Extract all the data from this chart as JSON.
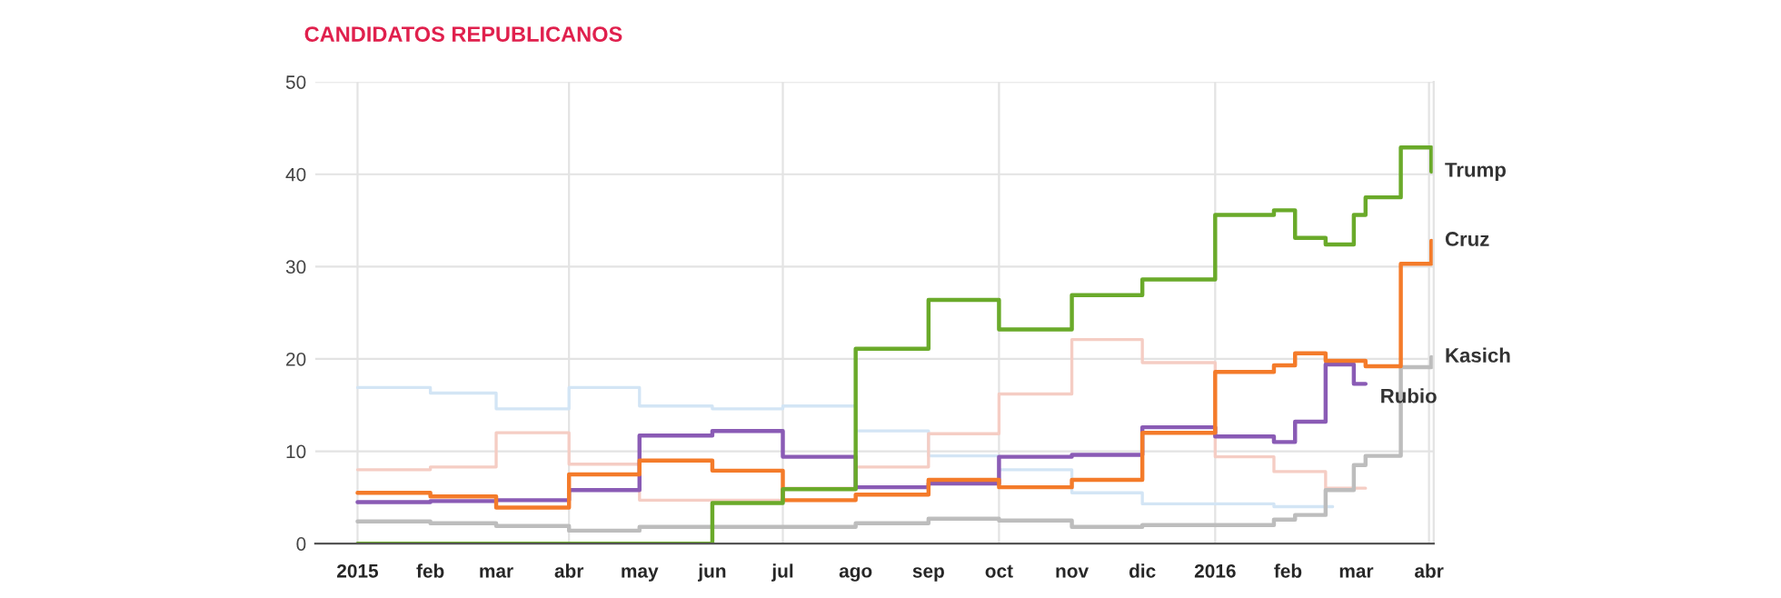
{
  "chart_data": {
    "type": "step",
    "title": "CANDIDATOS REPUBLICANOS",
    "xlim": [
      "2014-12-14",
      "2016-04-03"
    ],
    "ylim": [
      0,
      50
    ],
    "yticks": [
      0,
      10,
      20,
      30,
      40,
      50
    ],
    "xticks": [
      {
        "value": "2015-01-01",
        "label": "2015"
      },
      {
        "value": "2015-02-01",
        "label": "feb"
      },
      {
        "value": "2015-03-01",
        "label": "mar"
      },
      {
        "value": "2015-04-01",
        "label": "abr"
      },
      {
        "value": "2015-05-01",
        "label": "may"
      },
      {
        "value": "2015-06-01",
        "label": "jun"
      },
      {
        "value": "2015-07-01",
        "label": "jul"
      },
      {
        "value": "2015-08-01",
        "label": "ago"
      },
      {
        "value": "2015-09-01",
        "label": "sep"
      },
      {
        "value": "2015-10-01",
        "label": "oct"
      },
      {
        "value": "2015-11-01",
        "label": "nov"
      },
      {
        "value": "2015-12-01",
        "label": "dic"
      },
      {
        "value": "2016-01-01",
        "label": "2016"
      },
      {
        "value": "2016-02-01",
        "label": "feb"
      },
      {
        "value": "2016-03-01",
        "label": "mar"
      },
      {
        "value": "2016-04-01",
        "label": "abr"
      }
    ],
    "grid": true,
    "legend": false,
    "marker": "none",
    "line_style": "solid",
    "series": [
      {
        "color": "#d3e5f5",
        "x": [
          "2015-01-01",
          "2015-02-01",
          "2015-03-01",
          "2015-04-01",
          "2015-05-01",
          "2015-06-01",
          "2015-07-01",
          "2015-08-01",
          "2015-09-01",
          "2015-10-01",
          "2015-11-01",
          "2015-12-01",
          "2016-01-01",
          "2016-01-26",
          "2016-02-04",
          "2016-02-20"
        ],
        "values": [
          16.9,
          16.3,
          14.6,
          16.9,
          14.9,
          14.6,
          14.9,
          12.2,
          9.5,
          8.0,
          5.5,
          4.3,
          4.3,
          4.0,
          4.0,
          4.0
        ]
      },
      {
        "color": "#f5cdc4",
        "x": [
          "2015-01-01",
          "2015-02-01",
          "2015-03-01",
          "2015-04-01",
          "2015-05-01",
          "2015-06-01",
          "2015-07-01",
          "2015-08-01",
          "2015-09-01",
          "2015-10-01",
          "2015-11-01",
          "2015-12-01",
          "2016-01-01",
          "2016-01-26",
          "2016-02-17",
          "2016-03-05"
        ],
        "values": [
          8.0,
          8.3,
          12.0,
          8.6,
          4.7,
          4.7,
          6.0,
          8.3,
          11.9,
          16.2,
          22.1,
          19.6,
          9.4,
          7.8,
          6.0,
          6.0
        ]
      },
      {
        "name": "Kasich",
        "color": "#bdbdbd",
        "x": [
          "2015-01-01",
          "2015-02-01",
          "2015-03-01",
          "2015-04-01",
          "2015-05-01",
          "2015-08-01",
          "2015-09-01",
          "2015-10-01",
          "2015-11-01",
          "2015-12-01",
          "2016-01-01",
          "2016-01-26",
          "2016-02-04",
          "2016-02-17",
          "2016-02-29",
          "2016-03-05",
          "2016-03-20",
          "2016-04-02"
        ],
        "values": [
          2.4,
          2.2,
          1.9,
          1.4,
          1.8,
          2.2,
          2.7,
          2.5,
          1.8,
          2.0,
          2.0,
          2.6,
          3.1,
          5.8,
          8.5,
          9.5,
          19.1,
          20.2
        ]
      },
      {
        "name": "Rubio",
        "color": "#8a5bb5",
        "x": [
          "2015-01-01",
          "2015-02-01",
          "2015-03-01",
          "2015-04-01",
          "2015-05-01",
          "2015-06-01",
          "2015-07-01",
          "2015-08-01",
          "2015-09-01",
          "2015-10-01",
          "2015-11-01",
          "2015-12-01",
          "2016-01-01",
          "2016-01-26",
          "2016-02-04",
          "2016-02-17",
          "2016-02-29",
          "2016-03-05"
        ],
        "values": [
          4.5,
          4.6,
          4.7,
          5.8,
          11.7,
          12.2,
          9.4,
          6.1,
          6.5,
          9.4,
          9.6,
          12.6,
          11.6,
          11.0,
          13.2,
          19.4,
          17.3,
          17.3
        ]
      },
      {
        "name": "Cruz",
        "color": "#f47b2a",
        "x": [
          "2015-01-01",
          "2015-02-01",
          "2015-03-01",
          "2015-04-01",
          "2015-05-01",
          "2015-06-01",
          "2015-07-01",
          "2015-08-01",
          "2015-09-01",
          "2015-10-01",
          "2015-11-01",
          "2015-12-01",
          "2016-01-01",
          "2016-01-26",
          "2016-02-04",
          "2016-02-17",
          "2016-03-05",
          "2016-03-20",
          "2016-04-02"
        ],
        "values": [
          5.5,
          5.1,
          3.9,
          7.5,
          9.0,
          7.9,
          4.7,
          5.3,
          6.9,
          6.1,
          6.9,
          12.0,
          18.6,
          19.3,
          20.6,
          19.8,
          19.2,
          30.3,
          32.8
        ]
      },
      {
        "name": "Trump",
        "color": "#6aaa2a",
        "x": [
          "2015-01-01",
          "2015-06-01",
          "2015-07-01",
          "2015-08-01",
          "2015-09-01",
          "2015-10-01",
          "2015-11-01",
          "2015-12-01",
          "2016-01-01",
          "2016-01-26",
          "2016-02-04",
          "2016-02-17",
          "2016-02-29",
          "2016-03-05",
          "2016-03-20",
          "2016-04-02"
        ],
        "values": [
          0,
          4.4,
          5.9,
          21.1,
          26.4,
          23.2,
          26.9,
          28.6,
          35.6,
          36.1,
          33.1,
          32.4,
          35.6,
          37.5,
          42.9,
          40.3
        ]
      }
    ]
  }
}
